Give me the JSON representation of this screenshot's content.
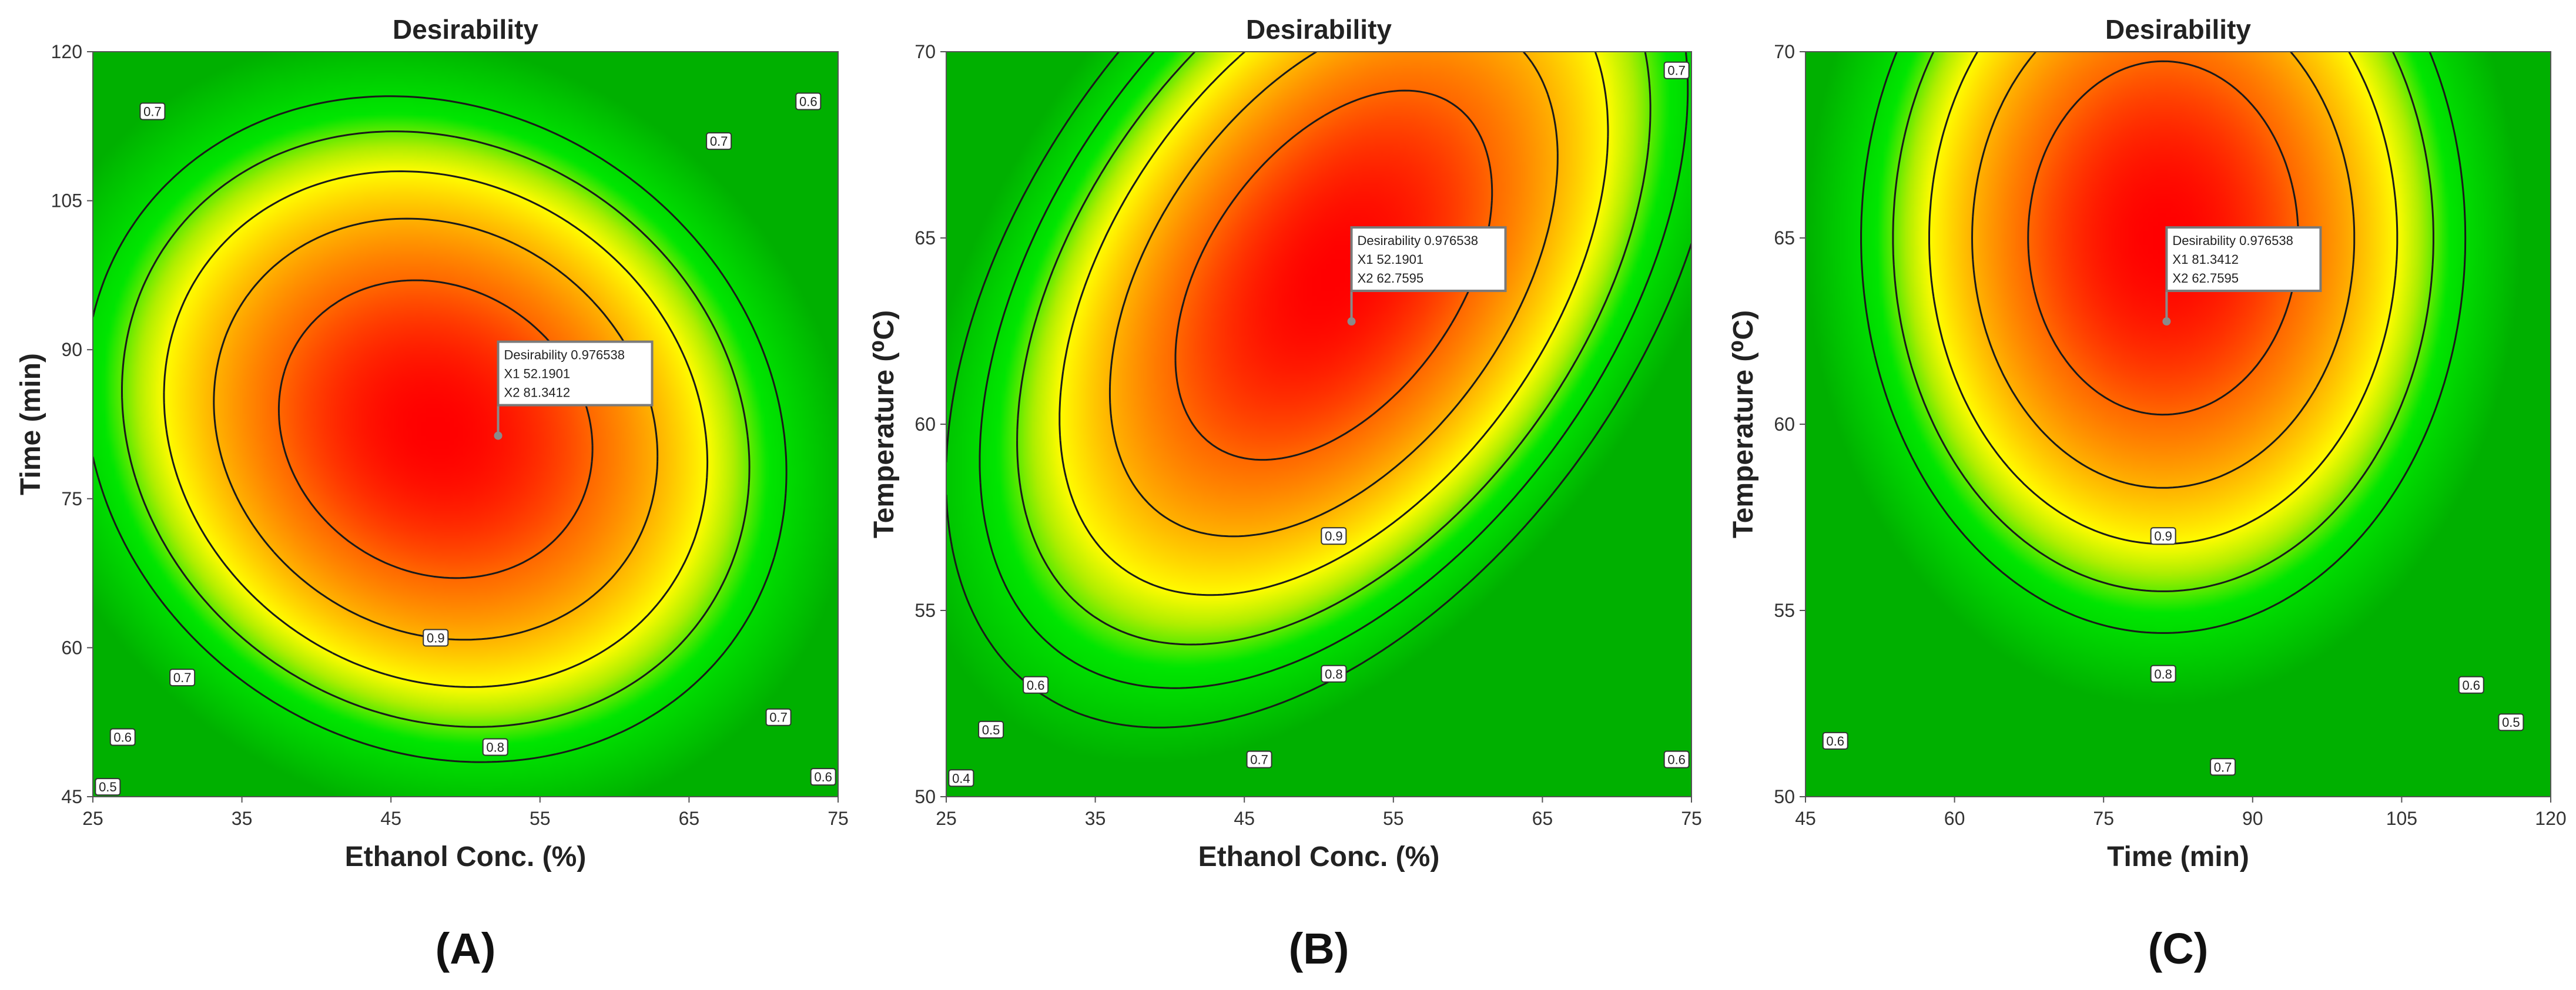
{
  "figure": {
    "background": "#ffffff"
  },
  "chart_data": [
    {
      "type": "contour",
      "panel_label": "(A)",
      "title": "Desirability",
      "xlabel": "Ethanol Conc. (%)",
      "ylabel": "Time (min)",
      "xlim": [
        25,
        75
      ],
      "ylim": [
        45,
        120
      ],
      "xticks": [
        25,
        35,
        45,
        55,
        65,
        75
      ],
      "yticks": [
        45,
        60,
        75,
        90,
        105,
        120
      ],
      "optimum": {
        "x": 52.1901,
        "y": 81.3412,
        "flag_lines": [
          "Desirability 0.976538",
          "X1  52.1901",
          "X2  81.3412"
        ]
      },
      "surface": {
        "x0": 48,
        "y0": 82,
        "sx": 33,
        "sy": 47,
        "r": 0.13
      },
      "levels": [
        {
          "value": 0.9,
          "label": "0.9",
          "label_at": [
            [
              48,
              61
            ]
          ]
        },
        {
          "value": 0.8,
          "label": "0.8",
          "label_at": [
            [
              52,
              50
            ]
          ]
        },
        {
          "value": 0.7,
          "label": "0.7",
          "label_at": [
            [
              29,
              114
            ],
            [
              67,
              111
            ],
            [
              31,
              57
            ],
            [
              71,
              53
            ]
          ]
        },
        {
          "value": 0.6,
          "label": "0.6",
          "label_at": [
            [
              27,
              51
            ],
            [
              73,
              115
            ],
            [
              74,
              47
            ]
          ]
        },
        {
          "value": 0.5,
          "label": "0.5",
          "label_at": [
            [
              26,
              46
            ]
          ]
        }
      ]
    },
    {
      "type": "contour",
      "panel_label": "(B)",
      "title": "Desirability",
      "xlabel": "Ethanol Conc. (%)",
      "ylabel": "Temperature (⁰C)",
      "xlim": [
        25,
        75
      ],
      "ylim": [
        50,
        70
      ],
      "xticks": [
        25,
        35,
        45,
        55,
        65,
        75
      ],
      "yticks": [
        50,
        55,
        60,
        65,
        70
      ],
      "optimum": {
        "x": 52.1901,
        "y": 62.7595,
        "flag_lines": [
          "Desirability 0.976538",
          "X1  52.1901",
          "X2  62.7595"
        ]
      },
      "surface": {
        "x0": 51,
        "y0": 64,
        "sx": 30,
        "sy": 14,
        "r": -0.45
      },
      "levels": [
        {
          "value": 0.9,
          "label": "0.9",
          "label_at": [
            [
              51,
              57
            ]
          ]
        },
        {
          "value": 0.8,
          "label": "0.8",
          "label_at": [
            [
              51,
              53.3
            ]
          ]
        },
        {
          "value": 0.7,
          "label": "0.7",
          "label_at": [
            [
              46,
              51
            ],
            [
              74,
              69.5
            ]
          ]
        },
        {
          "value": 0.6,
          "label": "0.6",
          "label_at": [
            [
              31,
              53
            ],
            [
              74,
              51
            ]
          ]
        },
        {
          "value": 0.5,
          "label": "0.5",
          "label_at": [
            [
              28,
              51.8
            ]
          ]
        },
        {
          "value": 0.4,
          "label": "0.4",
          "label_at": [
            [
              26,
              50.5
            ]
          ]
        }
      ]
    },
    {
      "type": "contour",
      "panel_label": "(C)",
      "title": "Desirability",
      "xlabel": "Time (min)",
      "ylabel": "Temperature (⁰C)",
      "xlim": [
        45,
        120
      ],
      "ylim": [
        50,
        70
      ],
      "xticks": [
        45,
        60,
        75,
        90,
        105,
        120
      ],
      "yticks": [
        50,
        55,
        60,
        65,
        70
      ],
      "optimum": {
        "x": 81.3412,
        "y": 62.7595,
        "flag_lines": [
          "Desirability 0.976538",
          "X1  81.3412",
          "X2  62.7595"
        ]
      },
      "surface": {
        "x0": 81,
        "y0": 65,
        "sx": 43,
        "sy": 15,
        "r": 0
      },
      "levels": [
        {
          "value": 0.9,
          "label": "0.9",
          "label_at": [
            [
              81,
              57
            ]
          ]
        },
        {
          "value": 0.8,
          "label": "0.8",
          "label_at": [
            [
              81,
              53.3
            ]
          ]
        },
        {
          "value": 0.7,
          "label": "0.7",
          "label_at": [
            [
              87,
              50.8
            ]
          ]
        },
        {
          "value": 0.6,
          "label": "0.6",
          "label_at": [
            [
              48,
              51.5
            ],
            [
              112,
              53
            ]
          ]
        },
        {
          "value": 0.5,
          "label": "0.5",
          "label_at": [
            [
              116,
              52
            ]
          ]
        }
      ]
    }
  ]
}
